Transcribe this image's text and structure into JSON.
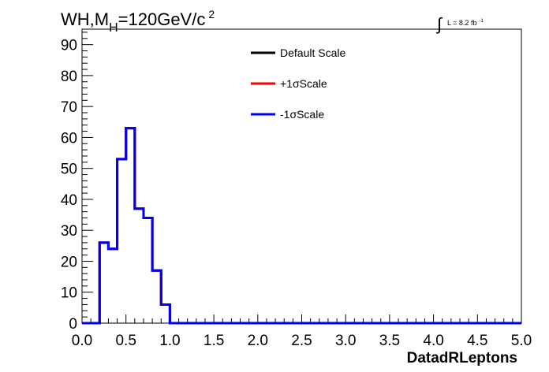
{
  "chart_data": {
    "type": "line",
    "title_main": "WH,M",
    "title_sub": "H",
    "title_rest": "=120GeV/c",
    "title_sup": "2",
    "lumi_label": "L = 8.2 fb",
    "lumi_sup": "-1",
    "xlabel": "DatadRLeptons",
    "ylabel": "",
    "xlim": [
      0,
      5
    ],
    "ylim": [
      0,
      95
    ],
    "x_ticks": [
      "0.0",
      "0.5",
      "1.0",
      "1.5",
      "2.0",
      "2.5",
      "3.0",
      "3.5",
      "4.0",
      "4.5",
      "5.0"
    ],
    "y_ticks": [
      "0",
      "10",
      "20",
      "30",
      "40",
      "50",
      "60",
      "70",
      "80",
      "90"
    ],
    "bin_width": 0.1,
    "bin_edges_start": 0,
    "legend_position": "top-center",
    "series": [
      {
        "name": "Default Scale",
        "color": "#000000",
        "values": [
          0,
          0,
          26,
          24,
          53,
          63,
          37,
          34,
          17,
          6,
          0,
          0,
          0,
          0,
          0,
          0,
          0,
          0,
          0,
          0,
          0,
          0,
          0,
          0,
          0,
          0,
          0,
          0,
          0,
          0,
          0,
          0,
          0,
          0,
          0,
          0,
          0,
          0,
          0,
          0,
          0,
          0,
          0,
          0,
          0,
          0,
          0,
          0,
          0,
          0
        ]
      },
      {
        "name": "+1σScale",
        "color": "#ff0000",
        "values": [
          0,
          0,
          26,
          24,
          53,
          63,
          37,
          34,
          17,
          6,
          0,
          0,
          0,
          0,
          0,
          0,
          0,
          0,
          0,
          0,
          0,
          0,
          0,
          0,
          0,
          0,
          0,
          0,
          0,
          0,
          0,
          0,
          0,
          0,
          0,
          0,
          0,
          0,
          0,
          0,
          0,
          0,
          0,
          0,
          0,
          0,
          0,
          0,
          0,
          0
        ]
      },
      {
        "name": "-1σScale",
        "color": "#0000ee",
        "values": [
          0,
          0,
          26,
          24,
          53,
          63,
          37,
          34,
          17,
          6,
          0,
          0,
          0,
          0,
          0,
          0,
          0,
          0,
          0,
          0,
          0,
          0,
          0,
          0,
          0,
          0,
          0,
          0,
          0,
          0,
          0,
          0,
          0,
          0,
          0,
          0,
          0,
          0,
          0,
          0,
          0,
          0,
          0,
          0,
          0,
          0,
          0,
          0,
          0,
          0
        ]
      }
    ]
  }
}
